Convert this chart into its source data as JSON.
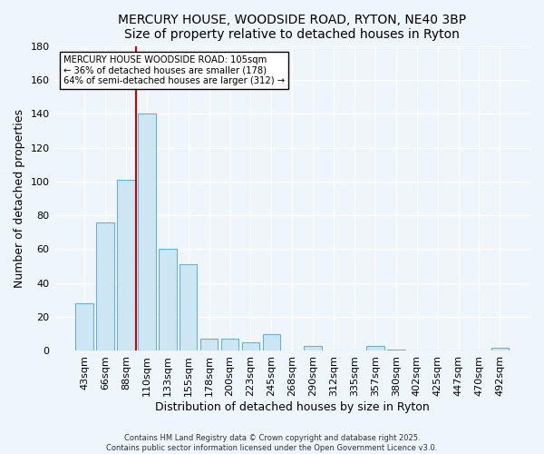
{
  "title": "MERCURY HOUSE, WOODSIDE ROAD, RYTON, NE40 3BP",
  "subtitle": "Size of property relative to detached houses in Ryton",
  "xlabel": "Distribution of detached houses by size in Ryton",
  "ylabel": "Number of detached properties",
  "bar_color": "#cce6f4",
  "bar_edge_color": "#6ab0d4",
  "background_color": "#eef5fb",
  "grid_color": "#ffffff",
  "categories": [
    "43sqm",
    "66sqm",
    "88sqm",
    "110sqm",
    "133sqm",
    "155sqm",
    "178sqm",
    "200sqm",
    "223sqm",
    "245sqm",
    "268sqm",
    "290sqm",
    "312sqm",
    "335sqm",
    "357sqm",
    "380sqm",
    "402sqm",
    "425sqm",
    "447sqm",
    "470sqm",
    "492sqm"
  ],
  "values": [
    28,
    76,
    101,
    140,
    60,
    51,
    7,
    7,
    5,
    10,
    0,
    3,
    0,
    0,
    3,
    1,
    0,
    0,
    0,
    0,
    2
  ],
  "ylim": [
    0,
    180
  ],
  "yticks": [
    0,
    20,
    40,
    60,
    80,
    100,
    120,
    140,
    160,
    180
  ],
  "vline_x": 3.0,
  "vline_color": "#cc0000",
  "annotation_line1": "MERCURY HOUSE WOODSIDE ROAD: 105sqm",
  "annotation_line2": "← 36% of detached houses are smaller (178)",
  "annotation_line3": "64% of semi-detached houses are larger (312) →",
  "footer1": "Contains HM Land Registry data © Crown copyright and database right 2025.",
  "footer2": "Contains public sector information licensed under the Open Government Licence v3.0."
}
